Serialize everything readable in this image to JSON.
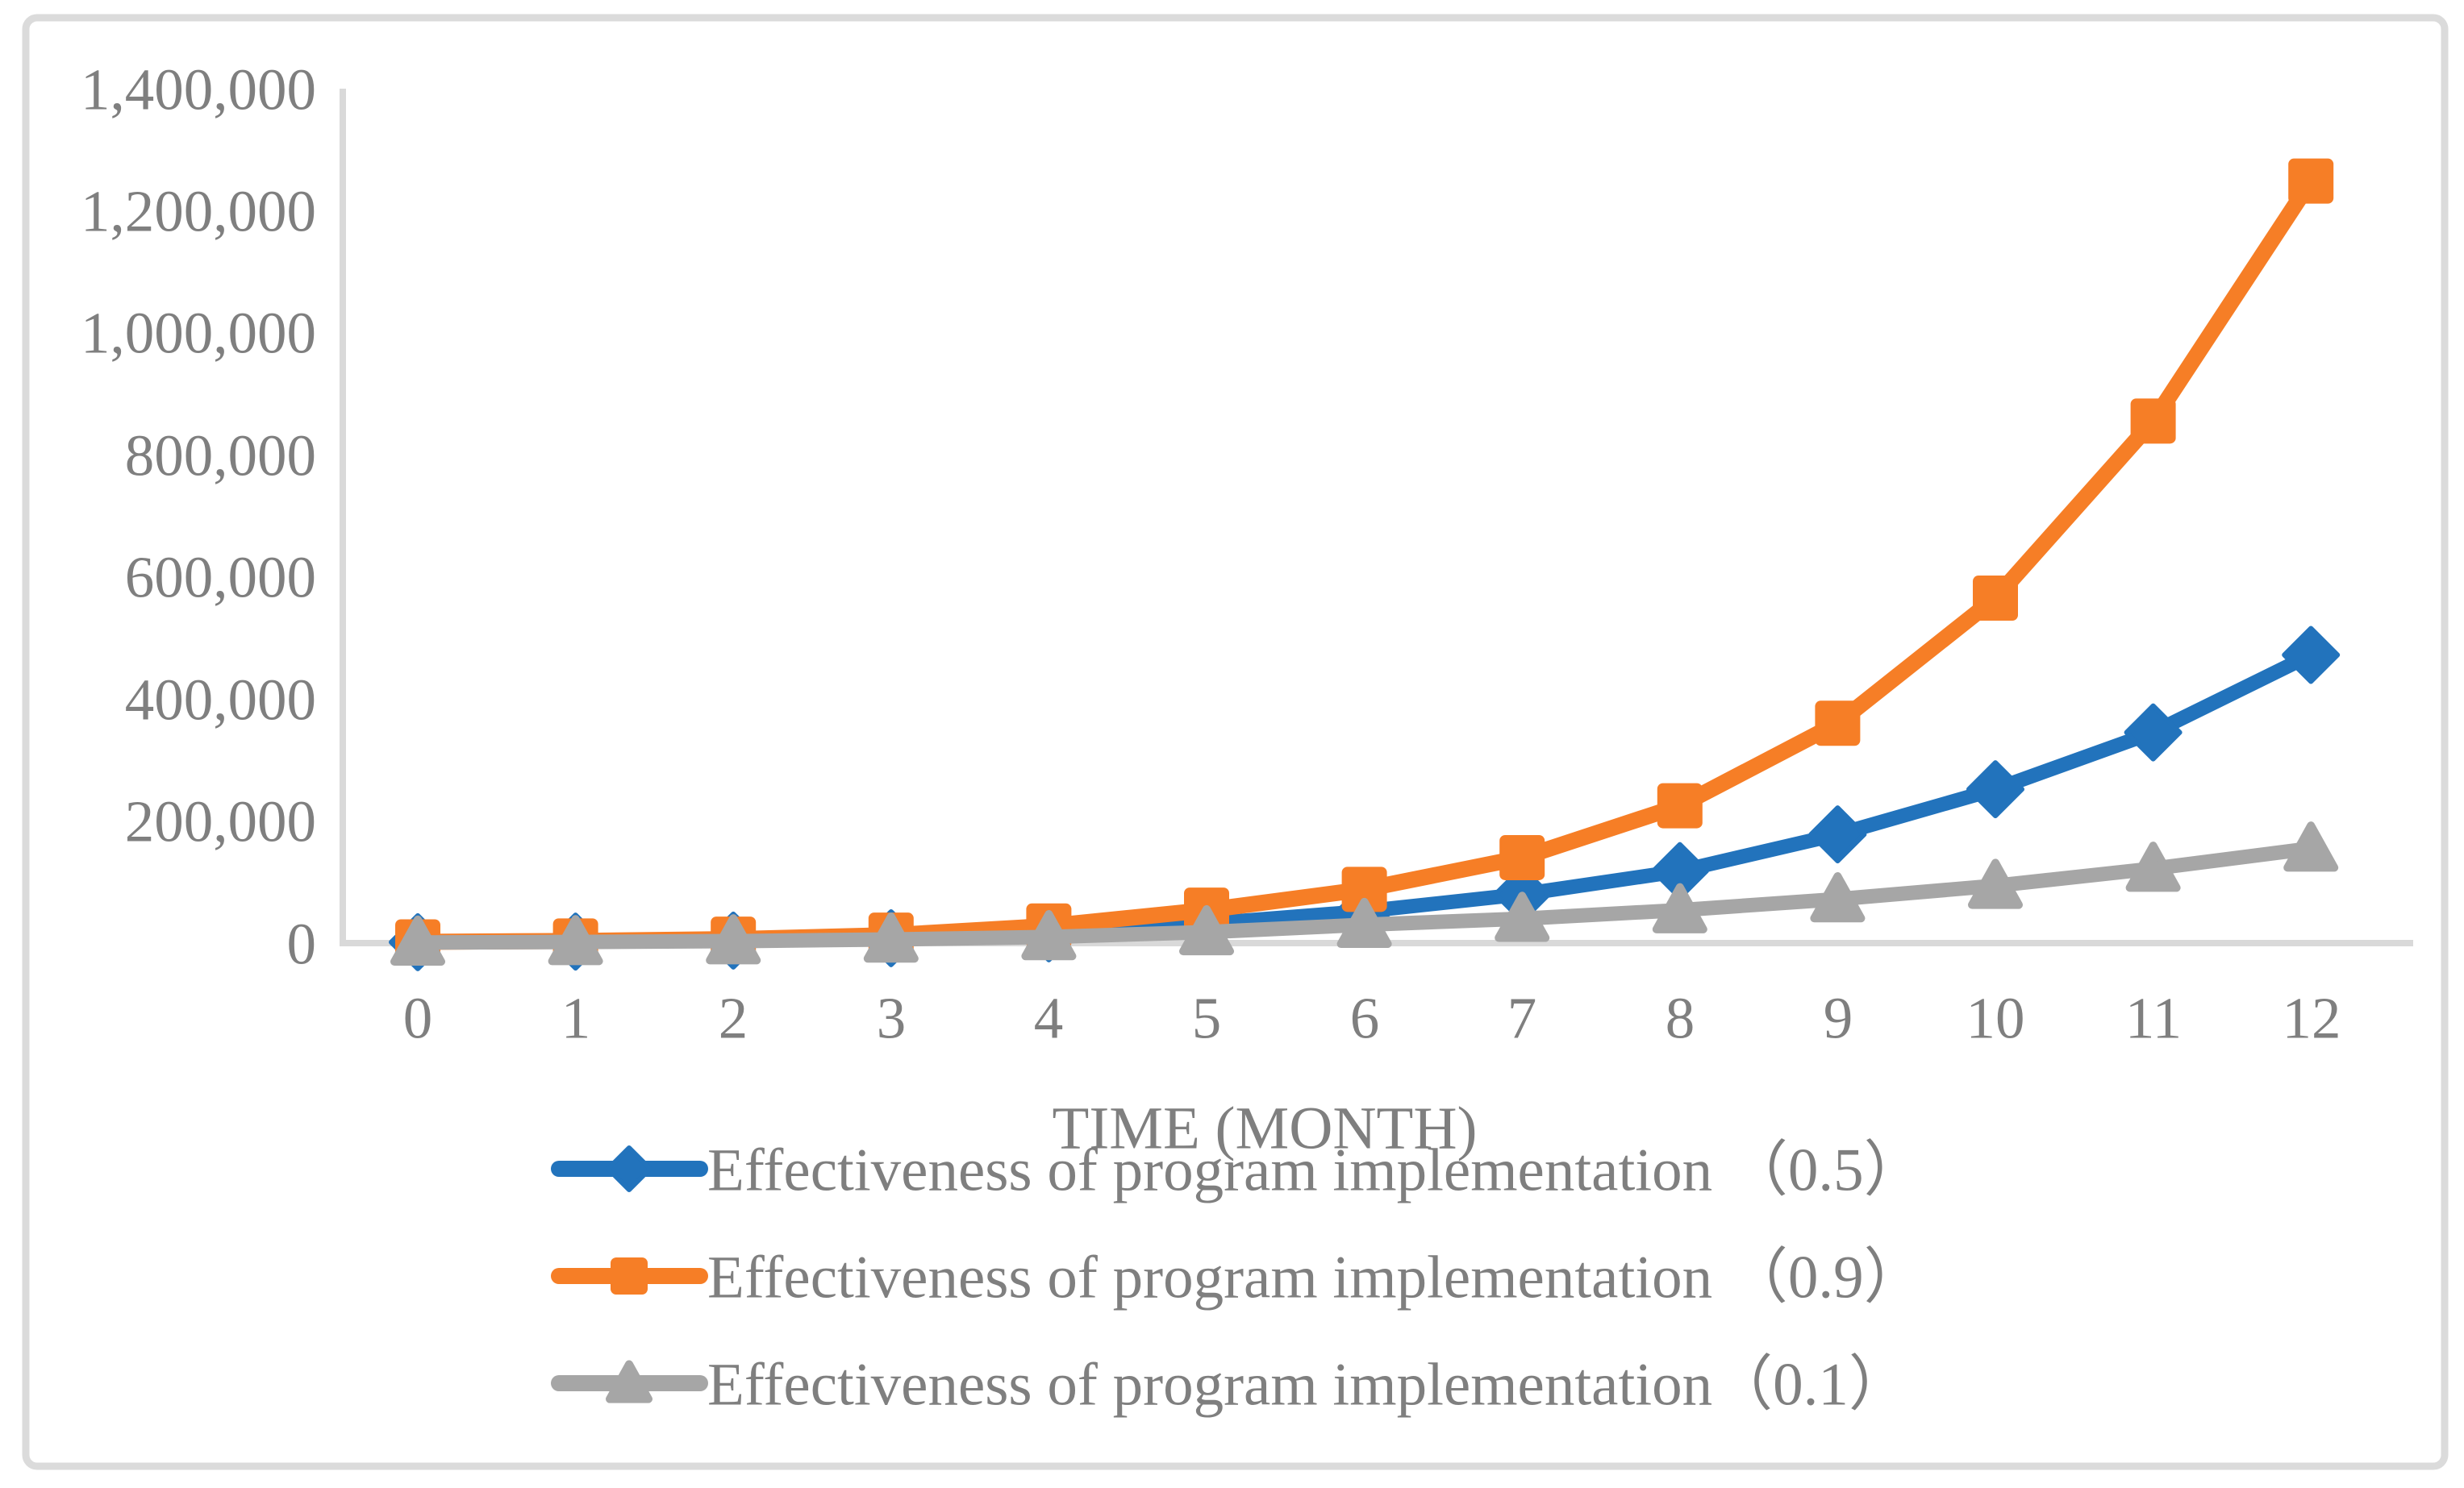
{
  "figure": {
    "background_color": "#FFFFFF",
    "border_color": "#DBDBDB",
    "axis_line_color": "#D9D9D9",
    "text_color": "#7F7F7F"
  },
  "chart_data": {
    "type": "line",
    "title": "",
    "xlabel": "TIME (MONTH)",
    "ylabel": "",
    "x": [
      0,
      1,
      2,
      3,
      4,
      5,
      6,
      7,
      8,
      9,
      10,
      11,
      12
    ],
    "xticks": [
      "0",
      "1",
      "2",
      "3",
      "4",
      "5",
      "6",
      "7",
      "8",
      "9",
      "10",
      "11",
      "12"
    ],
    "yticks": [
      "0",
      "200,000",
      "400,000",
      "600,000",
      "800,000",
      "1,000,000",
      "1,200,000",
      "1,400,000"
    ],
    "ylim": [
      0,
      1400000
    ],
    "ytick_step": 200000,
    "grid": false,
    "legend_position": "bottom-left",
    "series": [
      {
        "name": "Effectiveness of program implementation （0.5）",
        "color": "#2273BC",
        "marker": "diamond",
        "values": [
          1500,
          2500,
          4200,
          8000,
          16000,
          32000,
          52000,
          80000,
          118000,
          178000,
          252000,
          345000,
          472000
        ]
      },
      {
        "name": "Effectiveness of program implementation （0.9）",
        "color": "#F67E26",
        "marker": "square",
        "values": [
          2000,
          3500,
          6500,
          13000,
          28000,
          54000,
          88000,
          140000,
          225000,
          360000,
          565000,
          855000,
          1248000
        ]
      },
      {
        "name": "Effectiveness of program implementation（0.1）",
        "color": "#A6A6A6",
        "marker": "triangle",
        "values": [
          1000,
          1800,
          3200,
          6000,
          10000,
          18000,
          30000,
          40000,
          54000,
          72000,
          94000,
          122000,
          155000
        ]
      }
    ]
  }
}
